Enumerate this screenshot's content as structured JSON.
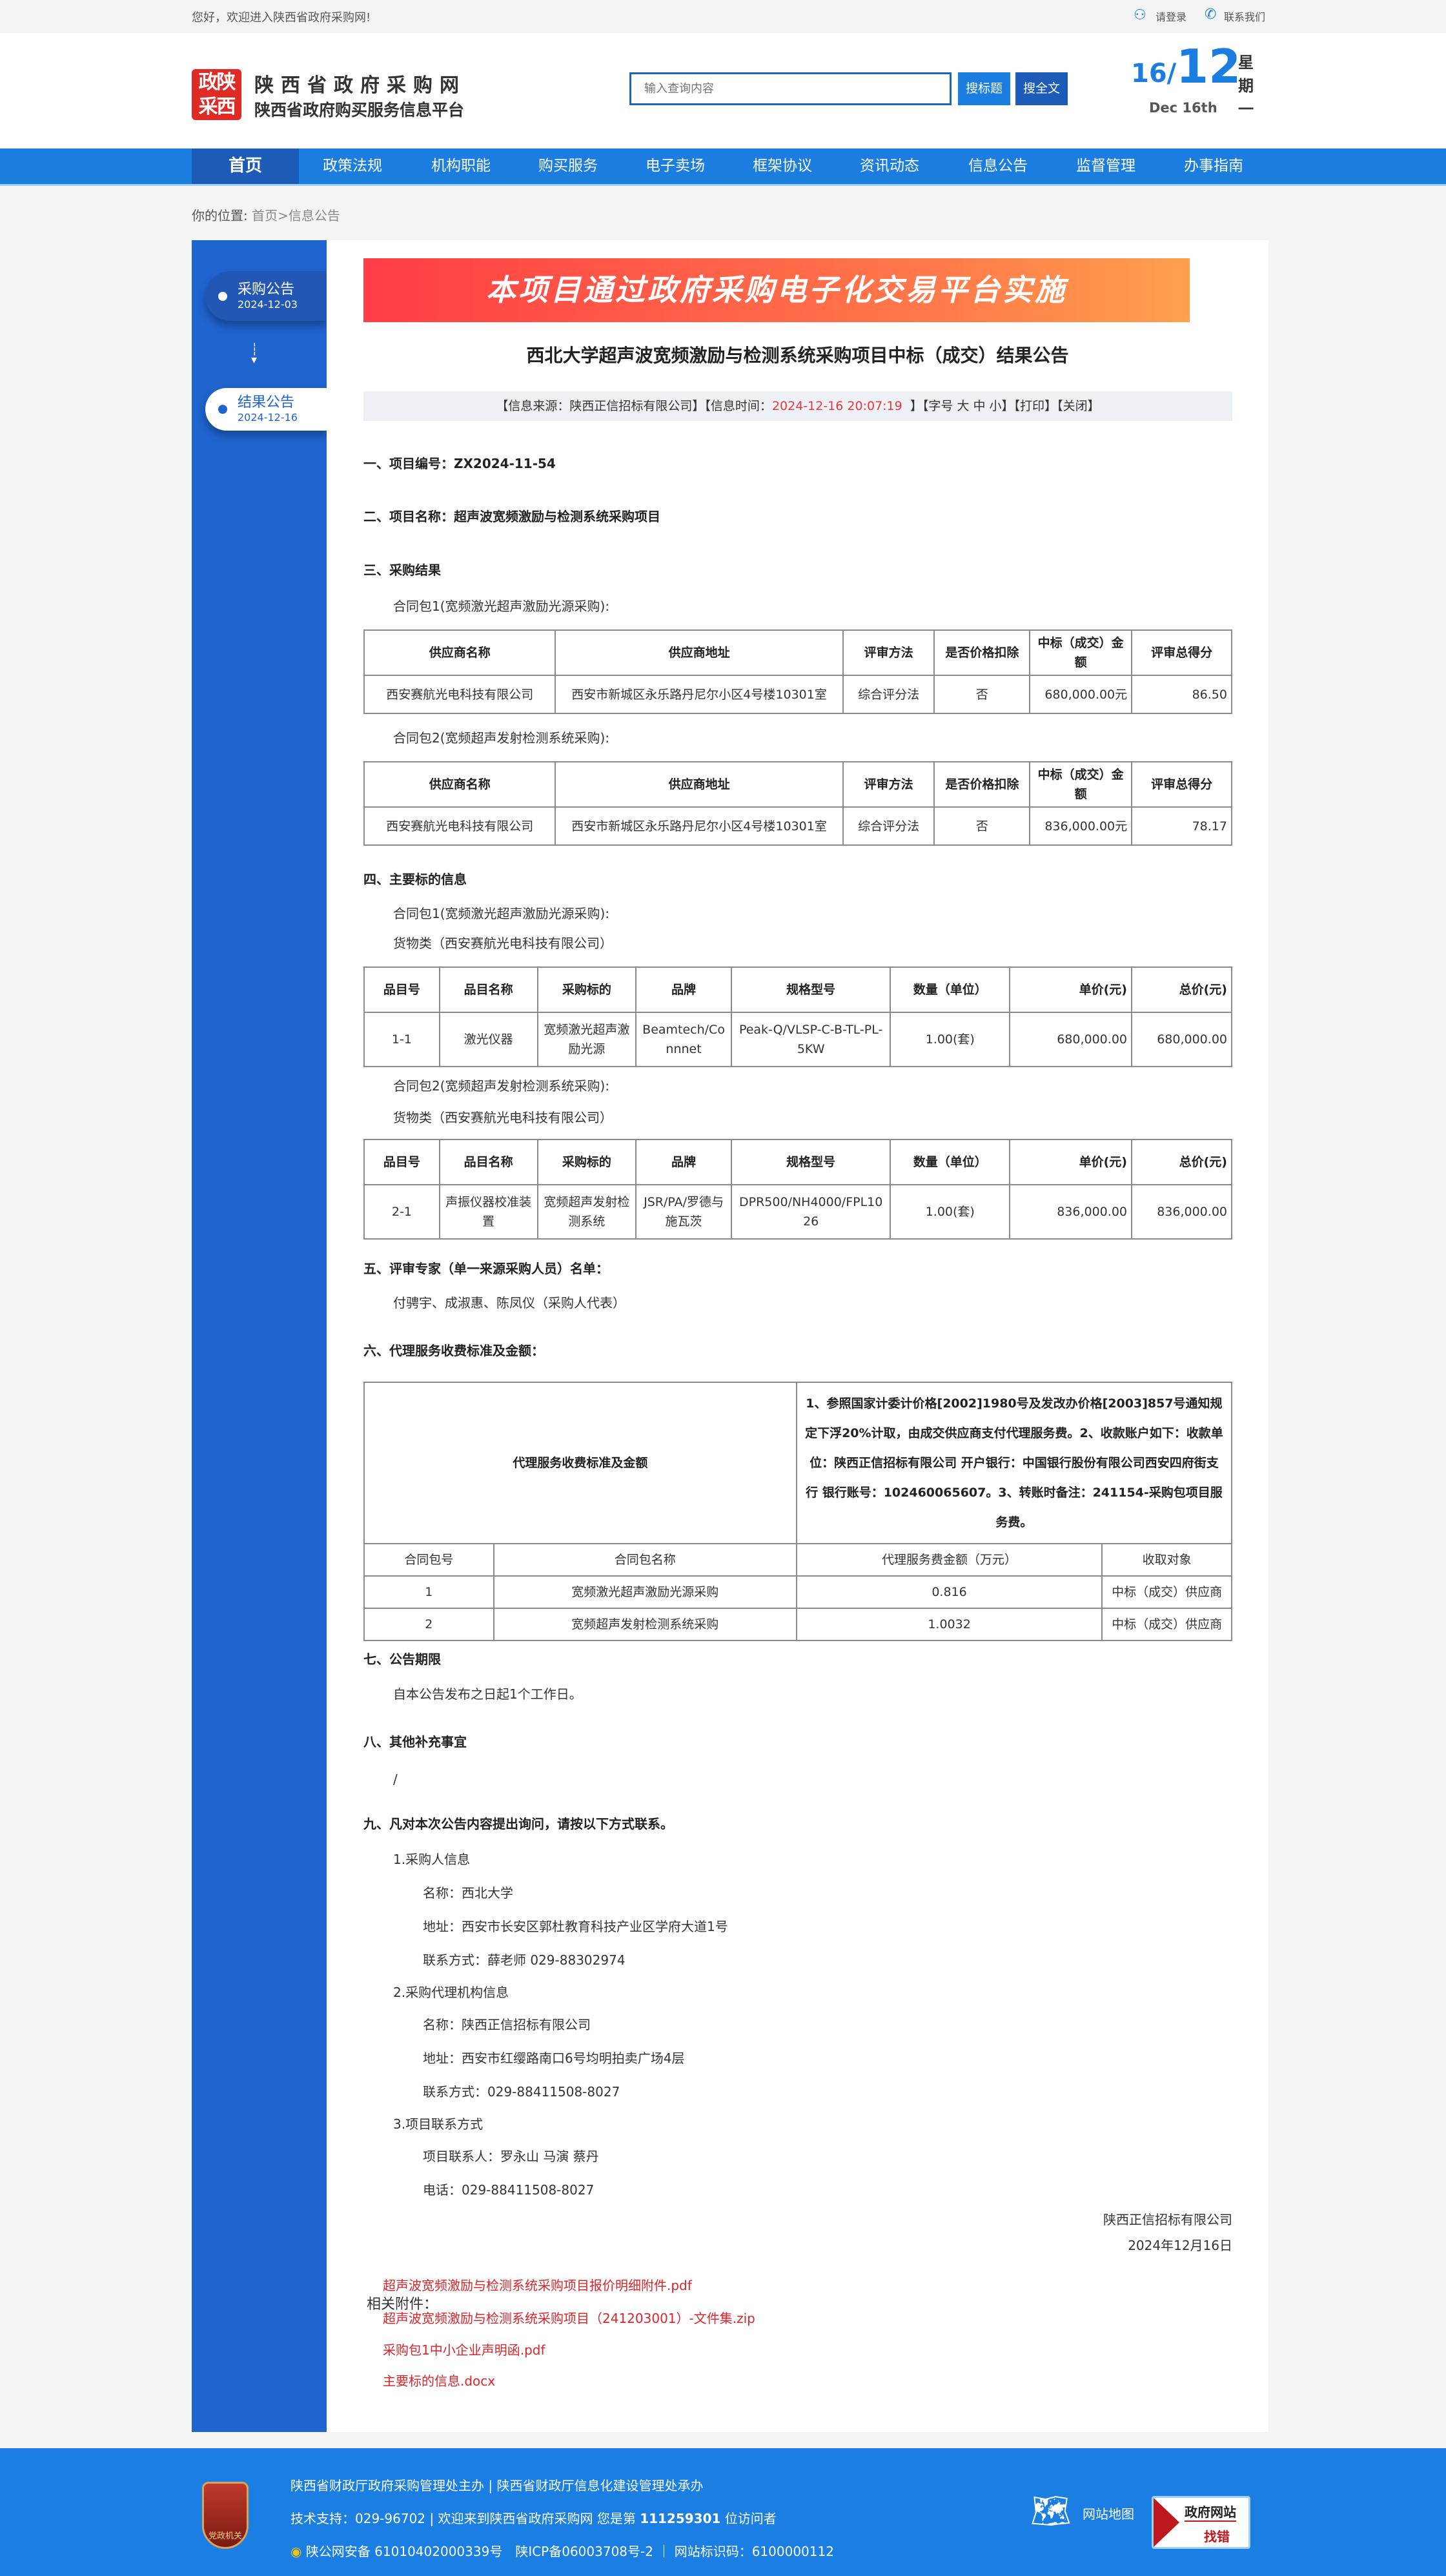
{
  "topbar": {
    "welcome": "您好，欢迎进入陕西省政府采购网!",
    "login": "请登录",
    "contact": "联系我们"
  },
  "header": {
    "logo_text": "政陕采西",
    "site_title": "陕西省政府采购网",
    "site_subtitle": "陕西省政府购买服务信息平台",
    "search_placeholder": "输入查询内容",
    "search_title_btn": "搜标题",
    "search_full_btn": "搜全文",
    "date_day": "16",
    "date_month": "12",
    "date_en": "Dec 16th",
    "weekday": "星期一"
  },
  "nav": [
    "首页",
    "政策法规",
    "机构职能",
    "购买服务",
    "电子卖场",
    "框架协议",
    "资讯动态",
    "信息公告",
    "监督管理",
    "办事指南"
  ],
  "breadcrumb": {
    "label": "你的位置:",
    "home": "首页",
    "current": ">信息公告"
  },
  "sidebar": [
    {
      "title": "采购公告",
      "date": "2024-12-03"
    },
    {
      "title": "结果公告",
      "date": "2024-12-16"
    }
  ],
  "article": {
    "banner": "本项目通过政府采购电子化交易平台实施",
    "title": "西北大学超声波宽频激励与检测系统采购项目中标（成交）结果公告",
    "info": {
      "source": "【信息来源：陕西正信招标有限公司】【信息时间：",
      "time": "2024-12-16 20:07:19",
      "close_bracket": "】",
      "font_label": "【字号",
      "font_big": "大",
      "font_mid": "中",
      "font_small": "小】",
      "print": "【打印】",
      "close": "【关闭】"
    },
    "s1": "一、项目编号：ZX2024-11-54",
    "s2": "二、项目名称：超声波宽频激励与检测系统采购项目",
    "s3": "三、采购结果",
    "pkg1": "合同包1(宽频激光超声激励光源采购):",
    "pkg2": "合同包2(宽频超声发射检测系统采购):",
    "result_headers": [
      "供应商名称",
      "供应商地址",
      "评审方法",
      "是否价格扣除",
      "中标（成交）金额",
      "评审总得分"
    ],
    "result_rows": [
      [
        "西安赛航光电科技有限公司",
        "西安市新城区永乐路丹尼尔小区4号楼10301室",
        "综合评分法",
        "否",
        "680,000.00元",
        "86.50"
      ],
      [
        "西安赛航光电科技有限公司",
        "西安市新城区永乐路丹尼尔小区4号楼10301室",
        "综合评分法",
        "否",
        "836,000.00元",
        "78.17"
      ]
    ],
    "s4": "四、主要标的信息",
    "goods": "货物类（西安赛航光电科技有限公司）",
    "item_headers": [
      "品目号",
      "品目名称",
      "采购标的",
      "品牌",
      "规格型号",
      "数量（单位）",
      "单价(元)",
      "总价(元)"
    ],
    "item_rows": [
      [
        "1-1",
        "激光仪器",
        "宽频激光超声激励光源",
        "Beamtech/Connnet",
        "Peak-Q/VLSP-C-B-TL-PL-5KW",
        "1.00(套)",
        "680,000.00",
        "680,000.00"
      ],
      [
        "2-1",
        "声振仪器校准装置",
        "宽频超声发射检测系统",
        "JSR/PA/罗德与施瓦茨",
        "DPR500/NH4000/FPL1026",
        "1.00(套)",
        "836,000.00",
        "836,000.00"
      ]
    ],
    "s5": "五、评审专家（单一来源采购人员）名单：",
    "experts": "付骋宇、成淑惠、陈凤仪（采购人代表）",
    "s6": "六、代理服务收费标准及金额：",
    "fee_label": "代理服务收费标准及金额",
    "fee_text": "1、参照国家计委计价格[2002]1980号及发改办价格[2003]857号通知规定下浮20%计取，由成交供应商支付代理服务费。2、收款账户如下：收款单位：陕西正信招标有限公司 开户银行：中国银行股份有限公司西安四府街支行 银行账号：102460065607。3、转账时备注：241154-采购包项目服务费。",
    "fee_headers": [
      "合同包号",
      "合同包名称",
      "代理服务费金额（万元）",
      "收取对象"
    ],
    "fee_rows": [
      [
        "1",
        "宽频激光超声激励光源采购",
        "0.816",
        "中标（成交）供应商"
      ],
      [
        "2",
        "宽频超声发射检测系统采购",
        "1.0032",
        "中标（成交）供应商"
      ]
    ],
    "s7": "七、公告期限",
    "period": "自本公告发布之日起1个工作日。",
    "s8": "八、其他补充事宜",
    "other": "/",
    "s9": "九、凡对本次公告内容提出询问，请按以下方式联系。",
    "c1": "1.采购人信息",
    "c1_name": "名称：西北大学",
    "c1_addr": "地址：西安市长安区郭杜教育科技产业区学府大道1号",
    "c1_tel": "联系方式：薛老师 029-88302974",
    "c2": "2.采购代理机构信息",
    "c2_name": "名称：陕西正信招标有限公司",
    "c2_addr": "地址：西安市红缨路南口6号均明拍卖广场4层",
    "c2_tel": "联系方式：029-88411508-8027",
    "c3": "3.项目联系方式",
    "c3_person": "项目联系人：罗永山 马演 蔡丹",
    "c3_tel": "电话：029-88411508-8027",
    "sign_org": "陕西正信招标有限公司",
    "sign_date": "2024年12月16日",
    "attach_label": "相关附件：",
    "attachments": [
      "超声波宽频激励与检测系统采购项目报价明细附件.pdf",
      "超声波宽频激励与检测系统采购项目（241203001）-文件集.zip",
      "采购包1中小企业声明函.pdf",
      "主要标的信息.docx"
    ]
  },
  "footer": {
    "line1": "陕西省财政厅政府采购管理处主办 | 陕西省财政厅信息化建设管理处承办",
    "line2a": "技术支持：029-96702 | 欢迎来到陕西省政府采购网 您是第 ",
    "visitors": "111259301",
    "line2b": " 位访问者",
    "line3": "陕公网安备 61010402000339号　陕ICP备06003708号-2 ｜ 网站标识码：6100000112",
    "sitemap": "网站地图",
    "emblem_text": "党政机关",
    "jiucuo_top": "政府网站",
    "jiucuo_bottom": "找错"
  },
  "colors": {
    "nav": "#1b7de0",
    "sidebar": "#1f64cf",
    "footer": "#1a7ee2",
    "highlight": "#e4393c"
  }
}
